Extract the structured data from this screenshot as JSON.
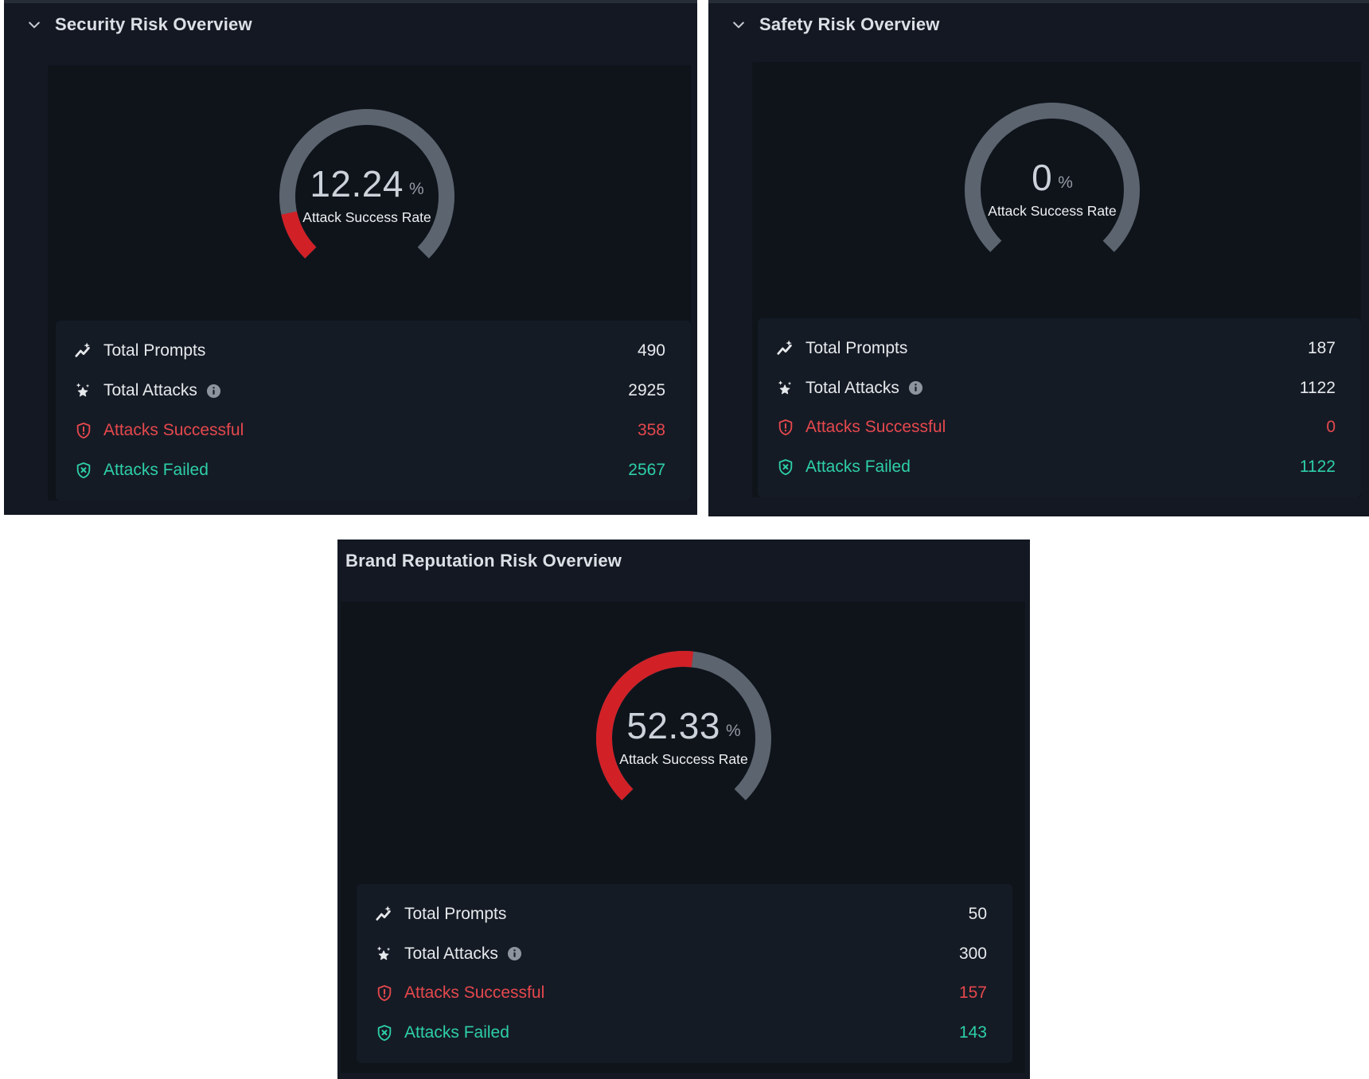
{
  "colors": {
    "page_bg": "#ffffff",
    "panel_bg": "#131822",
    "chart_bg": "#0f141b",
    "card_bg": "#151b25",
    "gauge_track": "#5c646f",
    "gauge_fill_red": "#d22027",
    "accent_red": "#e5484d",
    "accent_teal": "#2dcfa9",
    "text_primary": "#e6e9ec"
  },
  "panels": [
    {
      "title": "Security Risk Overview",
      "collapsible": true,
      "gauge": {
        "percent": 12.24,
        "value_label": "12.24",
        "unit": "%",
        "label": "Attack Success Rate"
      },
      "stats": [
        {
          "icon": "trend-sparkle-icon",
          "label": "Total Prompts",
          "value": "490"
        },
        {
          "icon": "star-sparkles-icon",
          "label": "Total Attacks",
          "value": "2925",
          "has_info": true
        },
        {
          "icon": "shield-alert-icon",
          "label": "Attacks Successful",
          "value": "358"
        },
        {
          "icon": "shield-x-icon",
          "label": "Attacks Failed",
          "value": "2567"
        }
      ]
    },
    {
      "title": "Safety Risk Overview",
      "collapsible": true,
      "gauge": {
        "percent": 0,
        "value_label": "0",
        "unit": "%",
        "label": "Attack Success Rate"
      },
      "stats": [
        {
          "icon": "trend-sparkle-icon",
          "label": "Total Prompts",
          "value": "187"
        },
        {
          "icon": "star-sparkles-icon",
          "label": "Total Attacks",
          "value": "1122",
          "has_info": true
        },
        {
          "icon": "shield-alert-icon",
          "label": "Attacks Successful",
          "value": "0"
        },
        {
          "icon": "shield-x-icon",
          "label": "Attacks Failed",
          "value": "1122"
        }
      ]
    },
    {
      "title": "Brand Reputation Risk Overview",
      "collapsible": false,
      "gauge": {
        "percent": 52.33,
        "value_label": "52.33",
        "unit": "%",
        "label": "Attack Success Rate"
      },
      "stats": [
        {
          "icon": "trend-sparkle-icon",
          "label": "Total Prompts",
          "value": "50"
        },
        {
          "icon": "star-sparkles-icon",
          "label": "Total Attacks",
          "value": "300",
          "has_info": true
        },
        {
          "icon": "shield-alert-icon",
          "label": "Attacks Successful",
          "value": "157"
        },
        {
          "icon": "shield-x-icon",
          "label": "Attacks Failed",
          "value": "143"
        }
      ]
    }
  ],
  "chart_data": [
    {
      "type": "gauge",
      "title": "Security Risk Overview",
      "value": 12.24,
      "unit": "%",
      "label": "Attack Success Rate",
      "min": 0,
      "max": 100,
      "start_angle": -135,
      "end_angle": 135,
      "stats": {
        "total_prompts": 490,
        "total_attacks": 2925,
        "attacks_successful": 358,
        "attacks_failed": 2567
      }
    },
    {
      "type": "gauge",
      "title": "Safety Risk Overview",
      "value": 0,
      "unit": "%",
      "label": "Attack Success Rate",
      "min": 0,
      "max": 100,
      "start_angle": -135,
      "end_angle": 135,
      "stats": {
        "total_prompts": 187,
        "total_attacks": 1122,
        "attacks_successful": 0,
        "attacks_failed": 1122
      }
    },
    {
      "type": "gauge",
      "title": "Brand Reputation Risk Overview",
      "value": 52.33,
      "unit": "%",
      "label": "Attack Success Rate",
      "min": 0,
      "max": 100,
      "start_angle": -135,
      "end_angle": 135,
      "stats": {
        "total_prompts": 50,
        "total_attacks": 300,
        "attacks_successful": 157,
        "attacks_failed": 143
      }
    }
  ]
}
